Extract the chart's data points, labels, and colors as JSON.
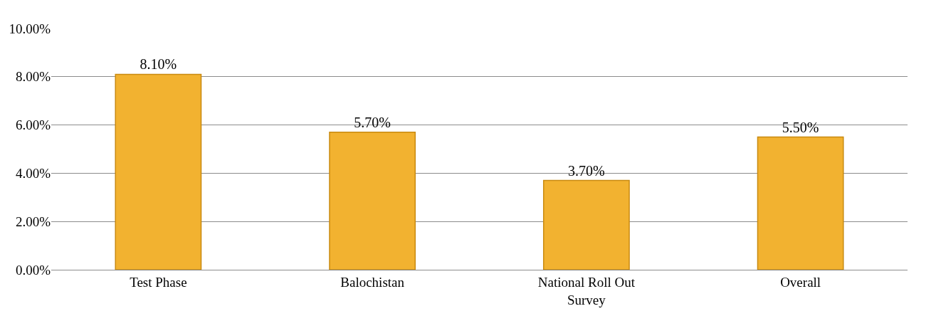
{
  "chart_data": {
    "type": "bar",
    "categories": [
      "Test Phase",
      "Balochistan",
      "National Roll Out Survey",
      "Overall"
    ],
    "values": [
      8.1,
      5.7,
      3.7,
      5.5
    ],
    "value_labels": [
      "8.10%",
      "5.70%",
      "3.70%",
      "5.50%"
    ],
    "color": "#f2b230",
    "ylim": [
      0,
      10
    ],
    "yticks": [
      {
        "value": 0,
        "label": "0.00%"
      },
      {
        "value": 2,
        "label": "2.00%"
      },
      {
        "value": 4,
        "label": "4.00%"
      },
      {
        "value": 6,
        "label": "6.00%"
      },
      {
        "value": 8,
        "label": "8.00%"
      },
      {
        "value": 10,
        "label": "10.00%"
      }
    ],
    "grid": "y",
    "legend": false
  }
}
